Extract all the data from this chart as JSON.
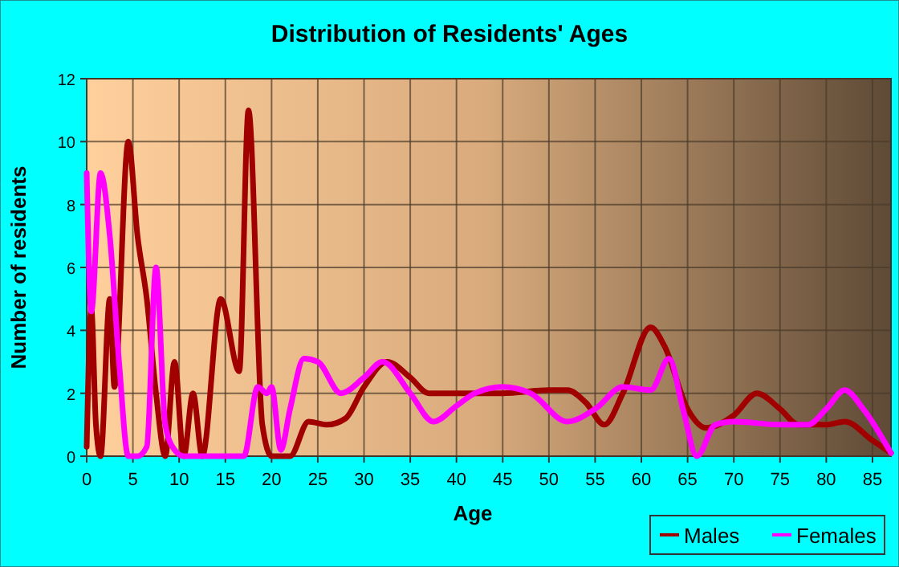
{
  "chart_data": {
    "type": "line",
    "title": "Distribution of Residents' Ages",
    "xlabel": "Age",
    "ylabel": "Number of residents",
    "xlim": [
      0,
      87
    ],
    "xticks": [
      0,
      5,
      10,
      15,
      20,
      25,
      30,
      35,
      40,
      45,
      50,
      55,
      60,
      65,
      70,
      75,
      80,
      85
    ],
    "ylim": [
      0,
      12
    ],
    "yticks": [
      0,
      2,
      4,
      6,
      8,
      10,
      12
    ],
    "grid": true,
    "legend": "bottom right",
    "marker": "none",
    "line_style": "solid",
    "series": [
      {
        "name": "Males",
        "color": "#a00000",
        "x": [
          0,
          0.5,
          1,
          1.5,
          2.5,
          3,
          4.5,
          5.5,
          6.5,
          7.5,
          8.5,
          9.5,
          10.5,
          11.5,
          12.5,
          14.5,
          16.5,
          17.5,
          19,
          20,
          21,
          22,
          24,
          26,
          28,
          30,
          32.5,
          35,
          37,
          40,
          45,
          50,
          52,
          54,
          56,
          58,
          61,
          62.5,
          65,
          67,
          70,
          72.5,
          75,
          77,
          80,
          82,
          85,
          87
        ],
        "values": [
          0.3,
          4.7,
          1,
          0,
          5,
          2.2,
          10,
          7,
          5,
          2,
          0,
          3,
          0,
          2,
          0,
          5,
          2.7,
          11,
          1,
          0,
          0,
          0,
          1.1,
          1,
          1.2,
          2.2,
          3,
          2.5,
          2,
          2,
          2,
          2.1,
          2.1,
          1.7,
          1,
          2,
          4.1,
          3.5,
          1.5,
          0.9,
          1.3,
          2,
          1.5,
          1,
          1,
          1.1,
          0.5,
          0.1
        ]
      },
      {
        "name": "Females",
        "color": "#ff00ff",
        "x": [
          0,
          0.5,
          1.5,
          2.5,
          3.5,
          4.5,
          5.5,
          6.5,
          7.5,
          8.5,
          9.5,
          10.5,
          12,
          15,
          17,
          18.5,
          19.5,
          20,
          21,
          22,
          23.5,
          25,
          27.5,
          30,
          32,
          35,
          37.5,
          40,
          42,
          45,
          48,
          52,
          55,
          58,
          61,
          63,
          64.5,
          66,
          68,
          70,
          75,
          78,
          80,
          82,
          84,
          87
        ],
        "values": [
          9,
          4.6,
          9,
          7,
          3,
          0,
          0,
          0.3,
          6,
          1,
          0.2,
          0,
          0,
          0,
          0,
          2.2,
          2,
          2.2,
          0.2,
          1.5,
          3.1,
          3,
          2,
          2.5,
          3,
          2,
          1.1,
          1.6,
          2,
          2.2,
          2,
          1.1,
          1.5,
          2.2,
          2.1,
          3.1,
          1.5,
          0,
          1,
          1.1,
          1,
          1,
          1.5,
          2.1,
          1.5,
          0.1
        ]
      }
    ]
  }
}
